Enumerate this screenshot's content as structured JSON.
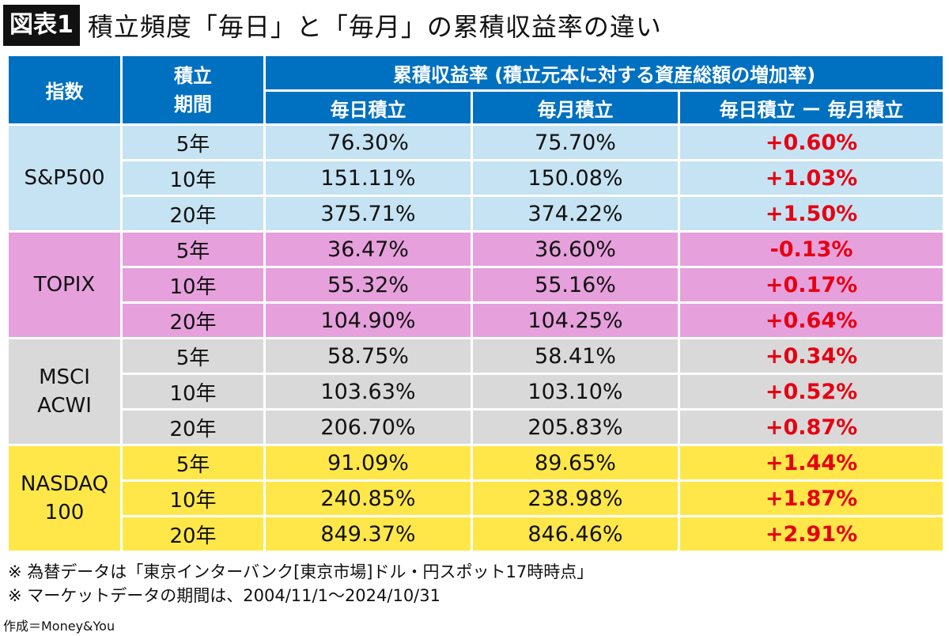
{
  "title": {
    "badge": "図表1",
    "text": "積立頻度「毎日」と「毎月」の累積収益率の違い"
  },
  "colors": {
    "header": "#0070c0",
    "sp500": "#c5e3f3",
    "topix": "#e6a0dc",
    "msci": "#d9d9d9",
    "nasdaq": "#ffe74a",
    "diff_text": "#e60012"
  },
  "chart_data": {
    "type": "table",
    "headers": {
      "index": "指数",
      "period": "積立期間",
      "group": "累積収益率 (積立元本に対する資産総額の増加率)",
      "daily": "毎日積立",
      "monthly": "毎月積立",
      "diff": "毎日積立 ー 毎月積立"
    },
    "groups": [
      {
        "index": "S&P500",
        "color": "#c5e3f3",
        "rows": [
          {
            "period": "5年",
            "daily": "76.30%",
            "monthly": "75.70%",
            "diff": "+0.60%"
          },
          {
            "period": "10年",
            "daily": "151.11%",
            "monthly": "150.08%",
            "diff": "+1.03%"
          },
          {
            "period": "20年",
            "daily": "375.71%",
            "monthly": "374.22%",
            "diff": "+1.50%"
          }
        ]
      },
      {
        "index": "TOPIX",
        "color": "#e6a0dc",
        "rows": [
          {
            "period": "5年",
            "daily": "36.47%",
            "monthly": "36.60%",
            "diff": "-0.13%"
          },
          {
            "period": "10年",
            "daily": "55.32%",
            "monthly": "55.16%",
            "diff": "+0.17%"
          },
          {
            "period": "20年",
            "daily": "104.90%",
            "monthly": "104.25%",
            "diff": "+0.64%"
          }
        ]
      },
      {
        "index": "MSCI ACWI",
        "color": "#d9d9d9",
        "rows": [
          {
            "period": "5年",
            "daily": "58.75%",
            "monthly": "58.41%",
            "diff": "+0.34%"
          },
          {
            "period": "10年",
            "daily": "103.63%",
            "monthly": "103.10%",
            "diff": "+0.52%"
          },
          {
            "period": "20年",
            "daily": "206.70%",
            "monthly": "205.83%",
            "diff": "+0.87%"
          }
        ]
      },
      {
        "index": "NASDAQ 100",
        "color": "#ffe74a",
        "rows": [
          {
            "period": "5年",
            "daily": "91.09%",
            "monthly": "89.65%",
            "diff": "+1.44%"
          },
          {
            "period": "10年",
            "daily": "240.85%",
            "monthly": "238.98%",
            "diff": "+1.87%"
          },
          {
            "period": "20年",
            "daily": "849.37%",
            "monthly": "846.46%",
            "diff": "+2.91%"
          }
        ]
      }
    ]
  },
  "notes": [
    "※ 為替データは「東京インターバンク[東京市場]ドル・円スポット17時時点」",
    "※ マーケットデータの期間は、2004/11/1～2024/10/31"
  ],
  "credit": "作成＝Money&You"
}
